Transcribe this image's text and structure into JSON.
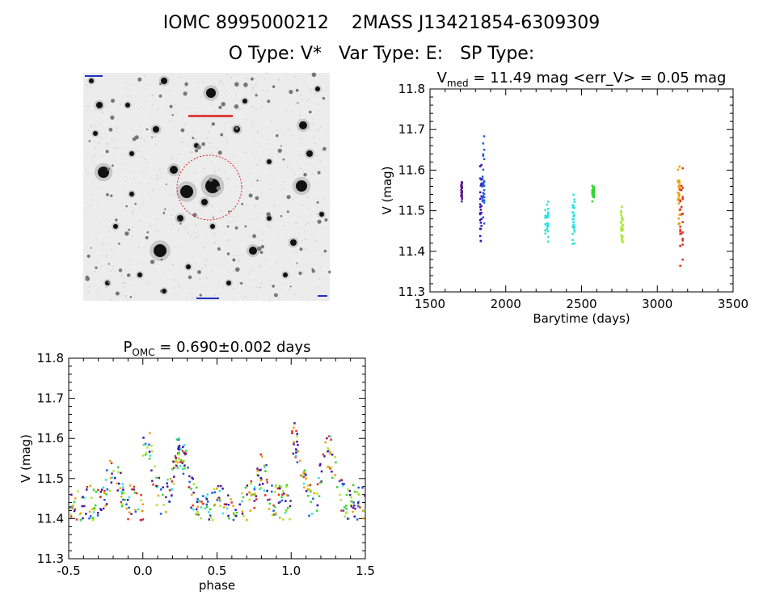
{
  "header": {
    "line1": "IOMC 8995000212    2MASS J13421854-6309309",
    "line2": "O Type: V*   Var Type: E:   SP Type:"
  },
  "sky_image": {
    "description_labels": []
  },
  "chart_data": [
    {
      "type": "scatter",
      "title_main": "V",
      "title_sub": "med",
      "title_rest": " = 11.49 mag <err_V> = 0.05 mag",
      "xlabel": "Barytime (days)",
      "ylabel": "V (mag)",
      "xlim": [
        1500,
        3500
      ],
      "ylim": [
        11.8,
        11.3
      ],
      "xticks": [
        "1500",
        "2000",
        "2500",
        "3000",
        "3500"
      ],
      "yticks": [
        "11.3",
        "11.4",
        "11.5",
        "11.6",
        "11.7",
        "11.8"
      ],
      "groups": [
        {
          "color": "#5a1a8c",
          "x": [
            1705,
            1708,
            1710
          ],
          "y": [
            [
              11.52,
              11.59
            ]
          ]
        },
        {
          "color": "#3a10b0",
          "x": [
            1830,
            1834,
            1838
          ],
          "y": [
            [
              11.39,
              11.65
            ]
          ]
        },
        {
          "color": "#1e5adc",
          "x": [
            1845,
            1850,
            1856
          ],
          "y": [
            [
              11.43,
              11.71
            ]
          ]
        },
        {
          "color": "#30e0e0",
          "x": [
            2260,
            2270,
            2278
          ],
          "y": [
            [
              11.41,
              11.54
            ]
          ]
        },
        {
          "color": "#30e0e0",
          "x": [
            2440,
            2446,
            2452
          ],
          "y": [
            [
              11.41,
              11.55
            ]
          ]
        },
        {
          "color": "#30d830",
          "x": [
            2570,
            2575,
            2580
          ],
          "y": [
            [
              11.52,
              11.57
            ]
          ]
        },
        {
          "color": "#a8e830",
          "x": [
            2760,
            2765,
            2770
          ],
          "y": [
            [
              11.4,
              11.53
            ]
          ]
        },
        {
          "color": "#f0a000",
          "x": [
            3135,
            3140,
            3145
          ],
          "y": [
            [
              11.45,
              11.62
            ]
          ]
        },
        {
          "color": "#e03020",
          "x": [
            3150,
            3158,
            3166
          ],
          "y": [
            [
              11.34,
              11.65
            ]
          ]
        }
      ]
    },
    {
      "type": "scatter",
      "title_main": "P",
      "title_sub": "OMC",
      "title_rest": " = 0.690±0.002 days",
      "xlabel": "phase",
      "ylabel": "V (mag)",
      "xlim": [
        -0.5,
        1.5
      ],
      "ylim": [
        11.8,
        11.3
      ],
      "xticks": [
        "-0.5",
        "0.0",
        "0.5",
        "1.0",
        "1.5"
      ],
      "yticks": [
        "11.3",
        "11.4",
        "11.5",
        "11.6",
        "11.7",
        "11.8"
      ],
      "colors": [
        "#e03020",
        "#a8e830",
        "#30e0e0",
        "#3a10b0",
        "#f0a000",
        "#1e5adc",
        "#30d830",
        "#5a1a8c"
      ]
    }
  ]
}
